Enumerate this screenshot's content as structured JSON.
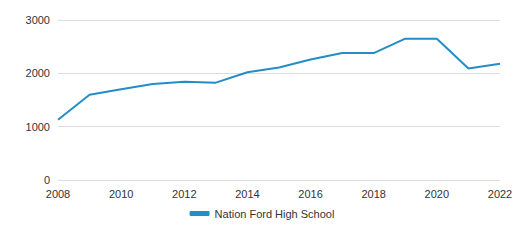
{
  "chart_data": {
    "type": "line",
    "x": [
      2008,
      2009,
      2010,
      2011,
      2012,
      2013,
      2014,
      2015,
      2016,
      2017,
      2018,
      2019,
      2020,
      2021,
      2022
    ],
    "series": [
      {
        "name": "Nation Ford High School",
        "color": "#238dc8",
        "values": [
          1130,
          1600,
          1700,
          1800,
          1840,
          1825,
          2020,
          2110,
          2260,
          2380,
          2380,
          2650,
          2650,
          2090,
          2180
        ]
      }
    ],
    "xlim": [
      2008,
      2022
    ],
    "xticks": [
      2008,
      2010,
      2012,
      2014,
      2016,
      2018,
      2020,
      2022
    ],
    "ylim": [
      0,
      3000
    ],
    "yticks": [
      0,
      1000,
      2000,
      3000
    ],
    "grid": true,
    "legend": "bottom"
  }
}
